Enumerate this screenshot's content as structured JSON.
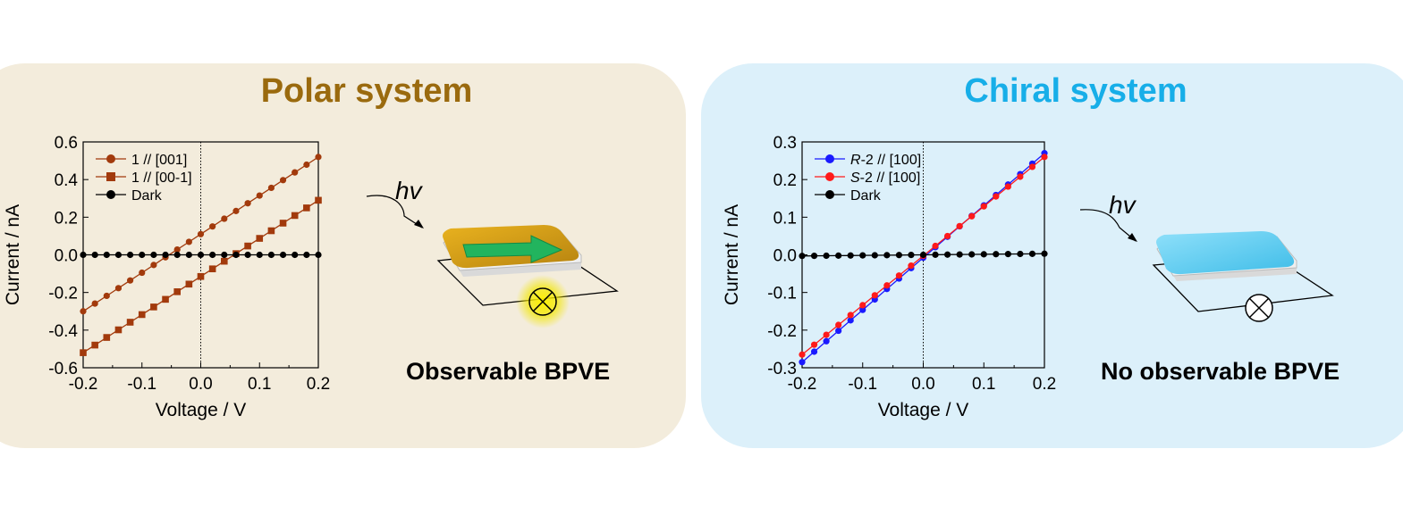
{
  "panels": {
    "polar": {
      "title": "Polar system",
      "bpve_label": "Observable BPVE",
      "hv_label": "hv",
      "title_color": "#9a6a0e",
      "background": "#f3ecdc",
      "crystal_top_color": "#d4a017",
      "arrow_color": "#1fb35c",
      "glow_color": "#f2e600"
    },
    "chiral": {
      "title": "Chiral system",
      "bpve_label": "No observable BPVE",
      "hv_label": "hv",
      "title_color": "#17aee8",
      "background": "#dcf0fa",
      "crystal_top_color": "#5ccbef"
    }
  },
  "chart_data": [
    {
      "type": "line",
      "xlabel": "Voltage / V",
      "ylabel": "Current / nA",
      "xlim": [
        -0.2,
        0.2
      ],
      "ylim": [
        -0.6,
        0.6
      ],
      "xticks": [
        "-0.2",
        "-0.1",
        "0.0",
        "0.1",
        "0.2"
      ],
      "yticks": [
        "-0.6",
        "-0.4",
        "-0.2",
        "0.0",
        "0.2",
        "0.4",
        "0.6"
      ],
      "zero_line_dotted": true,
      "legend_position": "top-left",
      "series": [
        {
          "name": "1 // [001]",
          "marker": "circle",
          "color": "#a23a0c",
          "x_start": -0.2,
          "x_end": 0.2,
          "points": 21,
          "y_start": -0.3,
          "y_end": 0.52
        },
        {
          "name": "1 // [00-1]",
          "marker": "square",
          "color": "#a23a0c",
          "x_start": -0.2,
          "x_end": 0.2,
          "points": 21,
          "y_start": -0.52,
          "y_end": 0.29
        },
        {
          "name": "Dark",
          "marker": "circle",
          "color": "#000000",
          "x_start": -0.2,
          "x_end": 0.2,
          "points": 21,
          "y_start": 0.0,
          "y_end": 0.0
        }
      ]
    },
    {
      "type": "line",
      "xlabel": "Voltage / V",
      "ylabel": "Current / nA",
      "xlim": [
        -0.2,
        0.2
      ],
      "ylim": [
        -0.3,
        0.3
      ],
      "xticks": [
        "-0.2",
        "-0.1",
        "0.0",
        "0.1",
        "0.2"
      ],
      "yticks": [
        "-0.3",
        "-0.2",
        "-0.1",
        "0.0",
        "0.1",
        "0.2",
        "0.3"
      ],
      "zero_line_dotted": true,
      "legend_position": "top-left",
      "series": [
        {
          "name_italic": "R",
          "name": "-2 // [100]",
          "marker": "circle",
          "color": "#1a1aff",
          "x_start": -0.2,
          "x_end": 0.2,
          "points": 21,
          "y_start": -0.285,
          "y_end": 0.27
        },
        {
          "name_italic": "S",
          "name": "-2 // [100]",
          "marker": "circle",
          "color": "#ff1a1a",
          "x_start": -0.2,
          "x_end": 0.2,
          "points": 21,
          "y_start": -0.265,
          "y_end": 0.26
        },
        {
          "name": "Dark",
          "marker": "circle",
          "color": "#000000",
          "x_start": -0.2,
          "x_end": 0.2,
          "points": 21,
          "y_start": -0.003,
          "y_end": 0.003
        }
      ]
    }
  ]
}
